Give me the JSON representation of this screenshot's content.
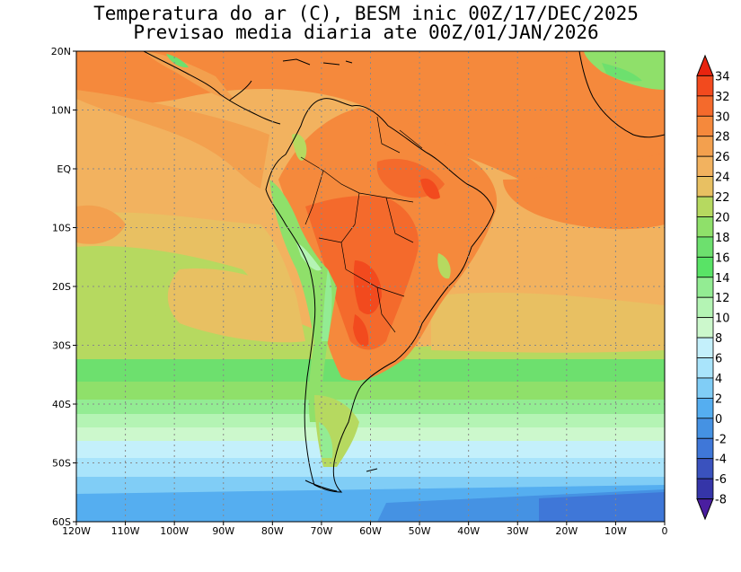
{
  "title_line1": "Temperatura do ar (C), BESM inic 00Z/17/DEC/2025",
  "title_line2": "Previsao media diaria ate 00Z/01/JAN/2026",
  "map": {
    "lon_range": [
      -120,
      0
    ],
    "lat_range": [
      -60,
      20
    ],
    "lat_ticks": [
      "20N",
      "10N",
      "EQ",
      "10S",
      "20S",
      "30S",
      "40S",
      "50S",
      "60S"
    ],
    "lon_ticks": [
      "120W",
      "110W",
      "100W",
      "90W",
      "80W",
      "70W",
      "60W",
      "50W",
      "40W",
      "30W",
      "20W",
      "10W",
      "0"
    ],
    "grid": "dotted"
  },
  "colorbar": {
    "labels": [
      "34",
      "32",
      "30",
      "28",
      "26",
      "24",
      "22",
      "20",
      "18",
      "16",
      "14",
      "12",
      "10",
      "8",
      "6",
      "4",
      "2",
      "0",
      "-2",
      "-4",
      "-6",
      "-8"
    ],
    "colors": [
      "#e8240f",
      "#f24a1e",
      "#f46a2c",
      "#f5893c",
      "#f3a04e",
      "#f2b25f",
      "#e8c062",
      "#b6d960",
      "#8fe06a",
      "#6de06e",
      "#59e366",
      "#93ec93",
      "#b4f4b4",
      "#ccf8cc",
      "#c4f0fb",
      "#a9e4fb",
      "#80cdf6",
      "#55aef0",
      "#4592e3",
      "#3f77d8",
      "#3a52be",
      "#3535a8",
      "#4a1ea0"
    ]
  }
}
